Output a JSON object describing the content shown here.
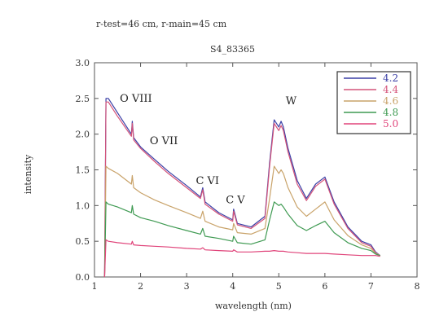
{
  "chart_data": {
    "type": "line",
    "header_line1": "r-test=46 cm, r-main=45 cm",
    "title": "S4_83365",
    "xlabel": "wavelength (nm)",
    "ylabel": "intensity",
    "xlim": [
      1,
      8
    ],
    "ylim": [
      0.0,
      3.0
    ],
    "x_ticks": [
      1,
      2,
      3,
      4,
      5,
      6,
      7,
      8
    ],
    "y_ticks": [
      0.0,
      0.5,
      1.0,
      1.5,
      2.0,
      2.5,
      3.0
    ],
    "y_tick_labels": [
      "0.0",
      "0.5",
      "1.0",
      "1.5",
      "2.0",
      "2.5",
      "3.0"
    ],
    "annotations": [
      {
        "text": "O VIII",
        "x": 1.55,
        "y": 2.45
      },
      {
        "text": "O VII",
        "x": 2.2,
        "y": 1.86
      },
      {
        "text": "C VI",
        "x": 3.2,
        "y": 1.3
      },
      {
        "text": "C V",
        "x": 3.85,
        "y": 1.03
      },
      {
        "text": "W",
        "x": 5.15,
        "y": 2.42
      }
    ],
    "legend_position": "top-right",
    "series": [
      {
        "name": "4.2",
        "color": "#3a3fa6",
        "x": [
          1.22,
          1.25,
          1.3,
          1.5,
          1.8,
          1.82,
          1.85,
          2.0,
          2.3,
          2.6,
          3.0,
          3.3,
          3.35,
          3.4,
          3.7,
          4.0,
          4.02,
          4.1,
          4.4,
          4.7,
          4.8,
          4.9,
          5.0,
          5.05,
          5.1,
          5.2,
          5.4,
          5.6,
          5.8,
          6.0,
          6.2,
          6.5,
          6.8,
          7.0,
          7.1,
          7.2
        ],
        "y": [
          0.0,
          2.5,
          2.5,
          2.3,
          2.0,
          2.18,
          1.95,
          1.82,
          1.65,
          1.48,
          1.28,
          1.12,
          1.25,
          1.05,
          0.9,
          0.8,
          0.95,
          0.75,
          0.7,
          0.85,
          1.6,
          2.2,
          2.1,
          2.18,
          2.1,
          1.8,
          1.35,
          1.1,
          1.3,
          1.4,
          1.05,
          0.7,
          0.5,
          0.45,
          0.35,
          0.3
        ]
      },
      {
        "name": "4.4",
        "color": "#d4537a",
        "x": [
          1.22,
          1.25,
          1.3,
          1.5,
          1.8,
          1.82,
          1.85,
          2.0,
          2.3,
          2.6,
          3.0,
          3.3,
          3.35,
          3.4,
          3.7,
          4.0,
          4.02,
          4.1,
          4.4,
          4.7,
          4.8,
          4.9,
          5.0,
          5.05,
          5.1,
          5.2,
          5.4,
          5.6,
          5.8,
          6.0,
          6.2,
          6.5,
          6.8,
          7.0,
          7.1,
          7.2
        ],
        "y": [
          0.0,
          2.45,
          2.45,
          2.25,
          1.97,
          2.15,
          1.92,
          1.8,
          1.62,
          1.45,
          1.25,
          1.1,
          1.22,
          1.02,
          0.88,
          0.78,
          0.92,
          0.73,
          0.68,
          0.82,
          1.55,
          2.15,
          2.05,
          2.12,
          2.05,
          1.75,
          1.3,
          1.07,
          1.27,
          1.37,
          1.02,
          0.68,
          0.48,
          0.43,
          0.34,
          0.3
        ]
      },
      {
        "name": "4.6",
        "color": "#c9a36a",
        "x": [
          1.22,
          1.25,
          1.3,
          1.5,
          1.8,
          1.82,
          1.85,
          2.0,
          2.3,
          2.6,
          3.0,
          3.3,
          3.35,
          3.4,
          3.7,
          4.0,
          4.02,
          4.1,
          4.4,
          4.7,
          4.8,
          4.9,
          5.0,
          5.05,
          5.1,
          5.2,
          5.4,
          5.6,
          5.8,
          6.0,
          6.2,
          6.5,
          6.8,
          7.0,
          7.1,
          7.2
        ],
        "y": [
          0.0,
          1.55,
          1.52,
          1.45,
          1.3,
          1.42,
          1.25,
          1.18,
          1.08,
          1.0,
          0.9,
          0.82,
          0.92,
          0.78,
          0.7,
          0.66,
          0.75,
          0.62,
          0.6,
          0.68,
          1.1,
          1.55,
          1.45,
          1.5,
          1.45,
          1.25,
          0.98,
          0.85,
          0.95,
          1.05,
          0.8,
          0.58,
          0.45,
          0.4,
          0.33,
          0.3
        ]
      },
      {
        "name": "4.8",
        "color": "#3f9a52",
        "x": [
          1.22,
          1.25,
          1.3,
          1.5,
          1.8,
          1.82,
          1.85,
          2.0,
          2.3,
          2.6,
          3.0,
          3.3,
          3.35,
          3.4,
          3.7,
          4.0,
          4.02,
          4.1,
          4.4,
          4.7,
          4.8,
          4.9,
          5.0,
          5.05,
          5.1,
          5.2,
          5.4,
          5.6,
          5.8,
          6.0,
          6.2,
          6.5,
          6.8,
          7.0,
          7.1,
          7.2
        ],
        "y": [
          0.0,
          1.05,
          1.02,
          0.98,
          0.9,
          1.0,
          0.88,
          0.83,
          0.78,
          0.72,
          0.65,
          0.6,
          0.68,
          0.57,
          0.54,
          0.5,
          0.57,
          0.48,
          0.46,
          0.52,
          0.8,
          1.05,
          1.0,
          1.02,
          0.98,
          0.88,
          0.72,
          0.65,
          0.72,
          0.78,
          0.62,
          0.48,
          0.4,
          0.37,
          0.32,
          0.3
        ]
      },
      {
        "name": "5.0",
        "color": "#e0447a",
        "x": [
          1.22,
          1.25,
          1.3,
          1.5,
          1.8,
          1.82,
          1.85,
          2.0,
          2.3,
          2.6,
          3.0,
          3.3,
          3.35,
          3.4,
          3.7,
          4.0,
          4.02,
          4.1,
          4.4,
          4.7,
          4.8,
          4.9,
          5.0,
          5.05,
          5.1,
          5.2,
          5.4,
          5.6,
          5.8,
          6.0,
          6.2,
          6.5,
          6.8,
          7.0,
          7.1,
          7.2
        ],
        "y": [
          0.0,
          0.52,
          0.5,
          0.48,
          0.46,
          0.5,
          0.45,
          0.44,
          0.43,
          0.42,
          0.4,
          0.39,
          0.41,
          0.38,
          0.37,
          0.36,
          0.38,
          0.35,
          0.35,
          0.36,
          0.36,
          0.37,
          0.36,
          0.36,
          0.36,
          0.35,
          0.34,
          0.33,
          0.33,
          0.33,
          0.32,
          0.31,
          0.3,
          0.3,
          0.3,
          0.29
        ]
      }
    ]
  }
}
